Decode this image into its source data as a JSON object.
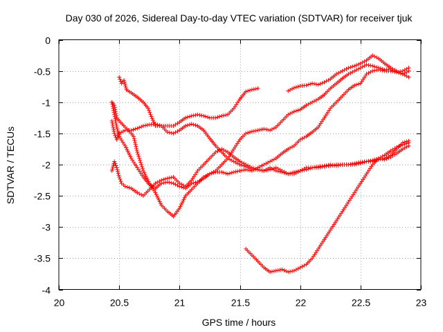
{
  "chart_data": {
    "type": "scatter",
    "title": "Day 030 of 2026, Sidereal Day-to-day VTEC variation (SDTVAR) for receiver tjuk",
    "xlabel": "GPS time / hours",
    "ylabel": "SDTVAR / TECUs",
    "xlim": [
      20,
      23
    ],
    "ylim": [
      -4,
      0
    ],
    "xticks": [
      20,
      20.5,
      21,
      21.5,
      22,
      22.5,
      23
    ],
    "xtick_labels": [
      "20",
      "20.5",
      "21",
      "21.5",
      "22",
      "22.5",
      "23"
    ],
    "yticks": [
      0,
      -0.5,
      -1,
      -1.5,
      -2,
      -2.5,
      -3,
      -3.5,
      -4
    ],
    "ytick_labels": [
      "0",
      "-0.5",
      "-1",
      "-1.5",
      "-2",
      "-2.5",
      "-3",
      "-3.5",
      "-4"
    ],
    "grid": true,
    "marker": "plus",
    "color": "#ff0000",
    "series": [
      {
        "points": [
          [
            20.5,
            -0.6
          ],
          [
            20.52,
            -0.7
          ],
          [
            20.54,
            -0.65
          ],
          [
            20.56,
            -0.8
          ],
          [
            20.6,
            -0.85
          ],
          [
            20.65,
            -0.92
          ],
          [
            20.7,
            -1.0
          ],
          [
            20.74,
            -1.1
          ],
          [
            20.76,
            -1.2
          ],
          [
            20.8,
            -1.38
          ],
          [
            20.85,
            -1.38
          ],
          [
            20.9,
            -1.38
          ],
          [
            20.95,
            -1.38
          ],
          [
            21.0,
            -1.32
          ],
          [
            21.05,
            -1.25
          ],
          [
            21.1,
            -1.22
          ],
          [
            21.15,
            -1.2
          ],
          [
            21.2,
            -1.22
          ],
          [
            21.25,
            -1.25
          ],
          [
            21.3,
            -1.25
          ],
          [
            21.35,
            -1.22
          ],
          [
            21.4,
            -1.2
          ],
          [
            21.45,
            -1.1
          ],
          [
            21.5,
            -0.95
          ],
          [
            21.55,
            -0.83
          ],
          [
            21.6,
            -0.8
          ],
          [
            21.65,
            -0.78
          ]
        ]
      },
      {
        "points": [
          [
            21.9,
            -0.82
          ],
          [
            21.95,
            -0.77
          ],
          [
            22.0,
            -0.74
          ],
          [
            22.05,
            -0.73
          ],
          [
            22.1,
            -0.7
          ],
          [
            22.15,
            -0.72
          ],
          [
            22.2,
            -0.68
          ],
          [
            22.25,
            -0.63
          ],
          [
            22.3,
            -0.55
          ],
          [
            22.35,
            -0.5
          ],
          [
            22.4,
            -0.45
          ],
          [
            22.45,
            -0.42
          ],
          [
            22.5,
            -0.38
          ],
          [
            22.55,
            -0.33
          ],
          [
            22.6,
            -0.25
          ],
          [
            22.65,
            -0.3
          ],
          [
            22.7,
            -0.38
          ],
          [
            22.75,
            -0.45
          ],
          [
            22.8,
            -0.5
          ],
          [
            22.85,
            -0.55
          ],
          [
            22.9,
            -0.6
          ]
        ]
      },
      {
        "points": [
          [
            20.44,
            -1.0
          ],
          [
            20.46,
            -1.05
          ],
          [
            20.48,
            -1.25
          ],
          [
            20.5,
            -1.3
          ],
          [
            20.55,
            -1.4
          ],
          [
            20.6,
            -1.5
          ],
          [
            20.62,
            -1.55
          ],
          [
            20.65,
            -1.8
          ],
          [
            20.7,
            -2.1
          ],
          [
            20.75,
            -2.3
          ],
          [
            20.8,
            -2.45
          ],
          [
            20.85,
            -2.65
          ],
          [
            20.9,
            -2.75
          ],
          [
            20.95,
            -2.83
          ],
          [
            21.0,
            -2.7
          ],
          [
            21.05,
            -2.5
          ],
          [
            21.1,
            -2.4
          ],
          [
            21.15,
            -2.3
          ],
          [
            21.2,
            -2.2
          ],
          [
            21.25,
            -2.15
          ],
          [
            21.3,
            -2.1
          ],
          [
            21.35,
            -2.0
          ],
          [
            21.4,
            -1.9
          ],
          [
            21.45,
            -1.75
          ],
          [
            21.5,
            -1.6
          ],
          [
            21.55,
            -1.5
          ],
          [
            21.6,
            -1.47
          ],
          [
            21.65,
            -1.45
          ],
          [
            21.7,
            -1.43
          ],
          [
            21.75,
            -1.45
          ],
          [
            21.8,
            -1.4
          ],
          [
            21.85,
            -1.3
          ],
          [
            21.9,
            -1.2
          ],
          [
            21.95,
            -1.15
          ],
          [
            22.0,
            -1.12
          ],
          [
            22.05,
            -1.05
          ],
          [
            22.1,
            -1.0
          ],
          [
            22.15,
            -0.95
          ],
          [
            22.2,
            -0.88
          ],
          [
            22.25,
            -0.78
          ],
          [
            22.3,
            -0.7
          ],
          [
            22.35,
            -0.62
          ],
          [
            22.4,
            -0.55
          ],
          [
            22.45,
            -0.5
          ],
          [
            22.5,
            -0.45
          ],
          [
            22.55,
            -0.4
          ],
          [
            22.6,
            -0.42
          ],
          [
            22.65,
            -0.45
          ],
          [
            22.7,
            -0.48
          ],
          [
            22.75,
            -0.47
          ],
          [
            22.8,
            -0.52
          ],
          [
            22.85,
            -0.55
          ],
          [
            22.9,
            -0.5
          ]
        ]
      },
      {
        "points": [
          [
            20.44,
            -1.0
          ],
          [
            20.46,
            -1.2
          ],
          [
            20.48,
            -1.4
          ],
          [
            20.5,
            -1.55
          ],
          [
            20.55,
            -1.7
          ],
          [
            20.6,
            -1.9
          ],
          [
            20.65,
            -2.05
          ],
          [
            20.7,
            -2.2
          ],
          [
            20.75,
            -2.32
          ],
          [
            20.8,
            -2.38
          ],
          [
            20.85,
            -2.3
          ],
          [
            20.9,
            -2.28
          ],
          [
            20.95,
            -2.3
          ],
          [
            21.0,
            -2.35
          ],
          [
            21.05,
            -2.38
          ],
          [
            21.1,
            -2.3
          ],
          [
            21.15,
            -2.28
          ],
          [
            21.2,
            -2.22
          ],
          [
            21.25,
            -2.15
          ],
          [
            21.3,
            -2.12
          ],
          [
            21.35,
            -2.12
          ],
          [
            21.4,
            -2.15
          ],
          [
            21.45,
            -2.12
          ],
          [
            21.5,
            -2.1
          ],
          [
            21.55,
            -2.08
          ],
          [
            21.6,
            -2.1
          ],
          [
            21.65,
            -2.05
          ],
          [
            21.7,
            -2.0
          ],
          [
            21.75,
            -1.95
          ],
          [
            21.8,
            -1.9
          ],
          [
            21.85,
            -1.82
          ],
          [
            21.9,
            -1.75
          ],
          [
            21.95,
            -1.7
          ],
          [
            22.0,
            -1.6
          ],
          [
            22.05,
            -1.55
          ],
          [
            22.1,
            -1.48
          ],
          [
            22.15,
            -1.4
          ],
          [
            22.2,
            -1.25
          ],
          [
            22.25,
            -1.1
          ],
          [
            22.3,
            -1.0
          ],
          [
            22.35,
            -0.9
          ],
          [
            22.4,
            -0.8
          ],
          [
            22.45,
            -0.73
          ],
          [
            22.5,
            -0.7
          ],
          [
            22.55,
            -0.55
          ],
          [
            22.6,
            -0.5
          ],
          [
            22.65,
            -0.48
          ],
          [
            22.7,
            -0.5
          ],
          [
            22.75,
            -0.5
          ],
          [
            22.8,
            -0.52
          ],
          [
            22.85,
            -0.5
          ],
          [
            22.9,
            -0.45
          ]
        ]
      },
      {
        "points": [
          [
            20.44,
            -1.3
          ],
          [
            20.46,
            -1.5
          ],
          [
            20.48,
            -1.6
          ],
          [
            20.5,
            -1.5
          ],
          [
            20.55,
            -1.45
          ],
          [
            20.6,
            -1.45
          ],
          [
            20.65,
            -1.42
          ],
          [
            20.7,
            -1.38
          ],
          [
            20.75,
            -1.36
          ],
          [
            20.8,
            -1.35
          ],
          [
            20.85,
            -1.38
          ],
          [
            20.9,
            -1.48
          ],
          [
            20.95,
            -1.5
          ],
          [
            21.0,
            -1.45
          ],
          [
            21.05,
            -1.38
          ],
          [
            21.1,
            -1.35
          ],
          [
            21.15,
            -1.38
          ],
          [
            21.2,
            -1.45
          ],
          [
            21.25,
            -1.58
          ],
          [
            21.3,
            -1.7
          ],
          [
            21.35,
            -1.8
          ],
          [
            21.4,
            -1.9
          ],
          [
            21.45,
            -1.95
          ],
          [
            21.5,
            -2.0
          ],
          [
            21.55,
            -2.03
          ],
          [
            21.6,
            -2.08
          ],
          [
            21.65,
            -2.08
          ],
          [
            21.7,
            -2.1
          ],
          [
            21.75,
            -2.05
          ],
          [
            21.8,
            -2.1
          ],
          [
            21.85,
            -2.12
          ],
          [
            21.9,
            -2.15
          ],
          [
            21.95,
            -2.12
          ],
          [
            22.0,
            -2.1
          ],
          [
            22.05,
            -2.05
          ],
          [
            22.1,
            -2.05
          ],
          [
            22.15,
            -2.05
          ],
          [
            22.2,
            -2.03
          ],
          [
            22.25,
            -2.02
          ],
          [
            22.3,
            -2.0
          ],
          [
            22.35,
            -2.0
          ],
          [
            22.4,
            -2.0
          ],
          [
            22.45,
            -2.0
          ],
          [
            22.5,
            -1.98
          ],
          [
            22.55,
            -1.95
          ],
          [
            22.6,
            -1.95
          ],
          [
            22.65,
            -1.92
          ],
          [
            22.7,
            -1.9
          ],
          [
            22.75,
            -1.85
          ],
          [
            22.8,
            -1.75
          ],
          [
            22.85,
            -1.65
          ],
          [
            22.9,
            -1.62
          ]
        ]
      },
      {
        "points": [
          [
            20.44,
            -2.1
          ],
          [
            20.46,
            -1.95
          ],
          [
            20.48,
            -2.05
          ],
          [
            20.5,
            -2.2
          ],
          [
            20.52,
            -2.3
          ],
          [
            20.55,
            -2.35
          ],
          [
            20.6,
            -2.38
          ],
          [
            20.65,
            -2.45
          ],
          [
            20.7,
            -2.5
          ],
          [
            20.75,
            -2.4
          ],
          [
            20.8,
            -2.3
          ],
          [
            20.85,
            -2.25
          ],
          [
            20.9,
            -2.22
          ],
          [
            20.95,
            -2.2
          ],
          [
            21.0,
            -2.3
          ],
          [
            21.05,
            -2.35
          ],
          [
            21.1,
            -2.25
          ],
          [
            21.15,
            -2.1
          ],
          [
            21.2,
            -2.0
          ],
          [
            21.25,
            -1.9
          ],
          [
            21.3,
            -1.8
          ],
          [
            21.35,
            -1.75
          ],
          [
            21.4,
            -1.8
          ],
          [
            21.45,
            -1.88
          ],
          [
            21.5,
            -1.95
          ],
          [
            21.55,
            -2.0
          ],
          [
            21.6,
            -2.05
          ],
          [
            21.65,
            -2.08
          ],
          [
            21.7,
            -2.1
          ],
          [
            21.75,
            -2.08
          ],
          [
            21.8,
            -2.05
          ],
          [
            21.85,
            -2.1
          ],
          [
            21.9,
            -2.15
          ],
          [
            21.95,
            -2.15
          ],
          [
            22.0,
            -2.1
          ],
          [
            22.05,
            -2.08
          ],
          [
            22.1,
            -2.05
          ],
          [
            22.15,
            -2.03
          ],
          [
            22.2,
            -2.02
          ],
          [
            22.25,
            -2.0
          ],
          [
            22.3,
            -2.02
          ],
          [
            22.35,
            -2.0
          ],
          [
            22.4,
            -2.0
          ],
          [
            22.45,
            -1.98
          ],
          [
            22.5,
            -1.96
          ],
          [
            22.55,
            -1.95
          ],
          [
            22.6,
            -1.93
          ],
          [
            22.65,
            -1.9
          ],
          [
            22.7,
            -1.92
          ],
          [
            22.75,
            -1.88
          ],
          [
            22.8,
            -1.82
          ],
          [
            22.85,
            -1.75
          ],
          [
            22.9,
            -1.7
          ]
        ]
      },
      {
        "points": [
          [
            21.55,
            -3.35
          ],
          [
            21.6,
            -3.45
          ],
          [
            21.65,
            -3.55
          ],
          [
            21.7,
            -3.65
          ],
          [
            21.75,
            -3.72
          ],
          [
            21.8,
            -3.7
          ],
          [
            21.85,
            -3.68
          ],
          [
            21.9,
            -3.72
          ],
          [
            21.95,
            -3.7
          ],
          [
            22.0,
            -3.65
          ],
          [
            22.05,
            -3.6
          ],
          [
            22.1,
            -3.5
          ],
          [
            22.15,
            -3.35
          ],
          [
            22.2,
            -3.2
          ],
          [
            22.25,
            -3.05
          ],
          [
            22.3,
            -2.9
          ],
          [
            22.35,
            -2.75
          ],
          [
            22.4,
            -2.6
          ],
          [
            22.45,
            -2.45
          ],
          [
            22.5,
            -2.3
          ],
          [
            22.55,
            -2.15
          ],
          [
            22.6,
            -2.0
          ],
          [
            22.65,
            -1.9
          ],
          [
            22.7,
            -1.85
          ],
          [
            22.75,
            -1.78
          ],
          [
            22.8,
            -1.72
          ],
          [
            22.85,
            -1.68
          ],
          [
            22.9,
            -1.65
          ]
        ]
      }
    ]
  }
}
